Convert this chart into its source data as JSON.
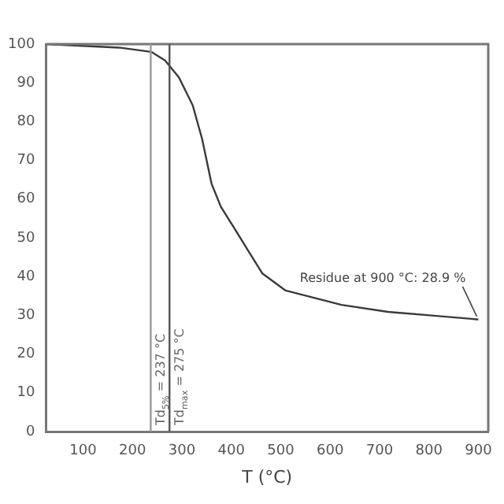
{
  "chart_data": {
    "type": "line",
    "xlabel": "T (°C)",
    "xlim": [
      25,
      920
    ],
    "xticks": [
      100,
      200,
      300,
      400,
      500,
      600,
      700,
      800,
      900
    ],
    "ylim": [
      0,
      100
    ],
    "yticks": [
      0,
      10,
      20,
      30,
      40,
      50,
      60,
      70,
      80,
      90,
      100
    ],
    "grid": false,
    "legend": false,
    "marker": "none",
    "line_style": "solid",
    "series": [
      {
        "color": "#3a3a3a",
        "x": [
          25,
          173,
          238,
          266,
          294,
          322,
          341,
          360,
          379,
          407,
          435,
          463,
          510,
          623,
          717,
          810,
          886,
          900
        ],
        "values": [
          100,
          99.1,
          98,
          95.8,
          91.4,
          84.2,
          75.5,
          64,
          58,
          52.3,
          46.5,
          40.8,
          36.4,
          32.7,
          30.9,
          29.9,
          29.1,
          28.9
        ]
      }
    ],
    "ref_lines": [
      {
        "axis": "x",
        "value": 237,
        "label": "Td$_{5%}$ = 237 °C",
        "color": "#9a9a9a"
      },
      {
        "axis": "x",
        "value": 275,
        "label": "Td$_{max}$ = 275 °C",
        "color": "#555555"
      }
    ],
    "annotations": [
      {
        "text": "Residue at 900 °C: 28.9 %",
        "x": 900,
        "y": 28.9
      }
    ]
  }
}
